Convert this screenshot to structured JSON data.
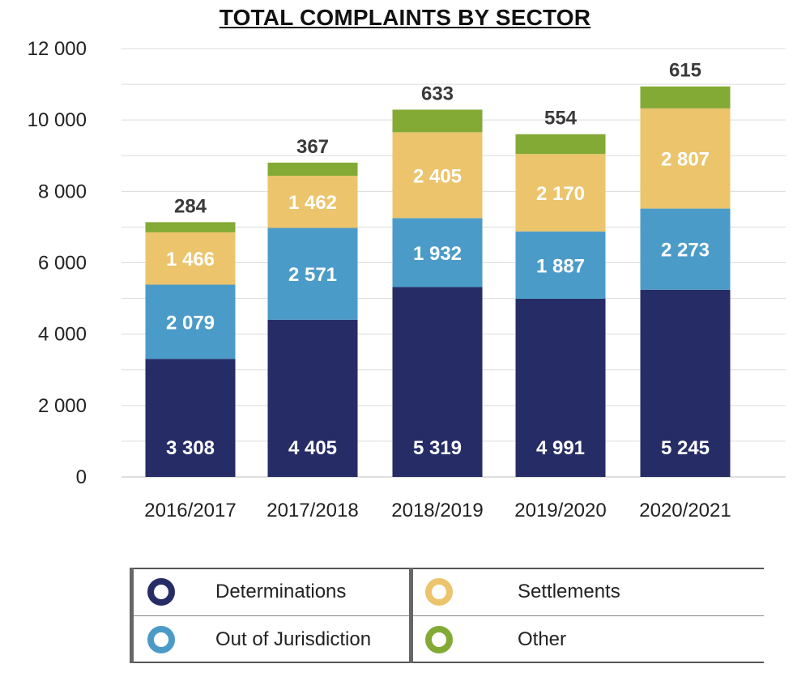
{
  "chart_data": {
    "type": "bar",
    "stacked": true,
    "title": "TOTAL COMPLAINTS BY SECTOR",
    "categories": [
      "2016/2017",
      "2017/2018",
      "2018/2019",
      "2019/2020",
      "2020/2021"
    ],
    "series": [
      {
        "name": "Determinations",
        "color": "#262d66",
        "values": [
          3308,
          4405,
          5319,
          4991,
          5245
        ],
        "labels": [
          "3 308",
          "4 405",
          "5 319",
          "4 991",
          "5 245"
        ]
      },
      {
        "name": "Out of Jurisdiction",
        "color": "#4b9bc9",
        "values": [
          2079,
          2571,
          1932,
          1887,
          2273
        ],
        "labels": [
          "2 079",
          "2 571",
          "1 932",
          "1 887",
          "2 273"
        ]
      },
      {
        "name": "Settlements",
        "color": "#ebc46c",
        "values": [
          1466,
          1462,
          2405,
          2170,
          2807
        ],
        "labels": [
          "1 466",
          "1 462",
          "2 405",
          "2 170",
          "2 807"
        ]
      },
      {
        "name": "Other",
        "color": "#83aa35",
        "values": [
          284,
          367,
          633,
          554,
          615
        ],
        "labels": [
          "284",
          "367",
          "633",
          "554",
          "615"
        ]
      }
    ],
    "ylim": [
      0,
      12000
    ],
    "yticks": [
      0,
      2000,
      4000,
      6000,
      8000,
      10000,
      12000
    ],
    "ytick_labels": [
      "0",
      "2 000",
      "4 000",
      "6 000",
      "8 000",
      "10 000",
      "12 000"
    ],
    "grid": true,
    "legend_position": "bottom"
  },
  "legend": {
    "items": [
      {
        "label": "Determinations",
        "color": "#262d66"
      },
      {
        "label": "Settlements",
        "color": "#ebc46c"
      },
      {
        "label": "Out of Jurisdiction",
        "color": "#4b9bc9"
      },
      {
        "label": "Other",
        "color": "#83aa35"
      }
    ]
  }
}
